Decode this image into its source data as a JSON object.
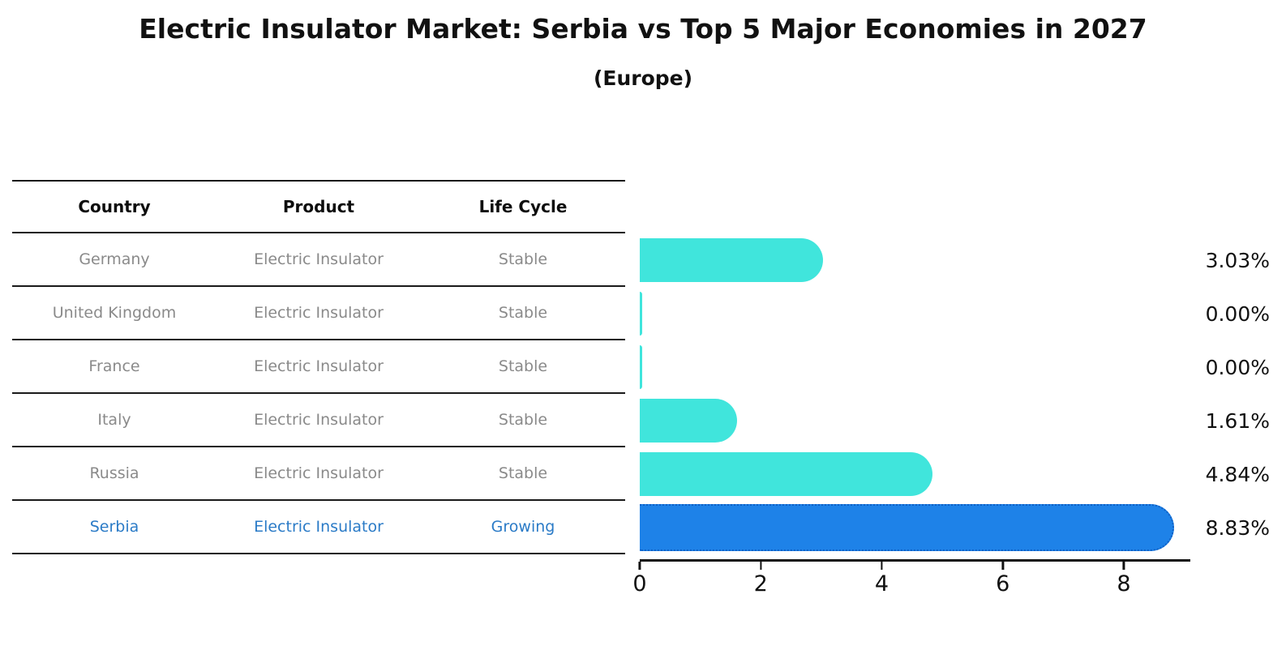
{
  "title": "Electric Insulator Market: Serbia vs Top 5 Major Economies in 2027",
  "subtitle": "(Europe)",
  "table": {
    "columns": [
      "Country",
      "Product",
      "Life Cycle"
    ],
    "rows": [
      {
        "country": "Germany",
        "product": "Electric Insulator",
        "life_cycle": "Stable",
        "highlight": false
      },
      {
        "country": "United Kingdom",
        "product": "Electric Insulator",
        "life_cycle": "Stable",
        "highlight": false
      },
      {
        "country": "France",
        "product": "Electric Insulator",
        "life_cycle": "Stable",
        "highlight": false
      },
      {
        "country": "Italy",
        "product": "Electric Insulator",
        "life_cycle": "Stable",
        "highlight": false
      },
      {
        "country": "Russia",
        "product": "Electric Insulator",
        "life_cycle": "Stable",
        "highlight": false
      },
      {
        "country": "Serbia",
        "product": "Electric Insulator",
        "life_cycle": "Growing",
        "highlight": true
      }
    ]
  },
  "chart_data": {
    "type": "bar",
    "orientation": "horizontal",
    "title": "Electric Insulator Market: Serbia vs Top 5 Major Economies in 2027",
    "subtitle": "(Europe)",
    "categories": [
      "Germany",
      "United Kingdom",
      "France",
      "Italy",
      "Russia",
      "Serbia"
    ],
    "values": [
      3.03,
      0.0,
      0.0,
      1.61,
      4.84,
      8.83
    ],
    "value_labels": [
      "3.03%",
      "0.00%",
      "0.00%",
      "1.61%",
      "4.84%",
      "8.83%"
    ],
    "highlight_index": 5,
    "xlim": [
      0,
      9.1
    ],
    "xticks": [
      0,
      2,
      4,
      6,
      8
    ],
    "grid": false,
    "legend": false,
    "bar_color": "#40e5dc",
    "highlight_color": "#1e82e8",
    "highlight_border_color": "#0f5fc4"
  },
  "colors": {
    "row_text": "#8a8a8a",
    "highlight_text": "#2b7bc7",
    "header_text": "#0d0d0d",
    "axis_text": "#111111"
  }
}
